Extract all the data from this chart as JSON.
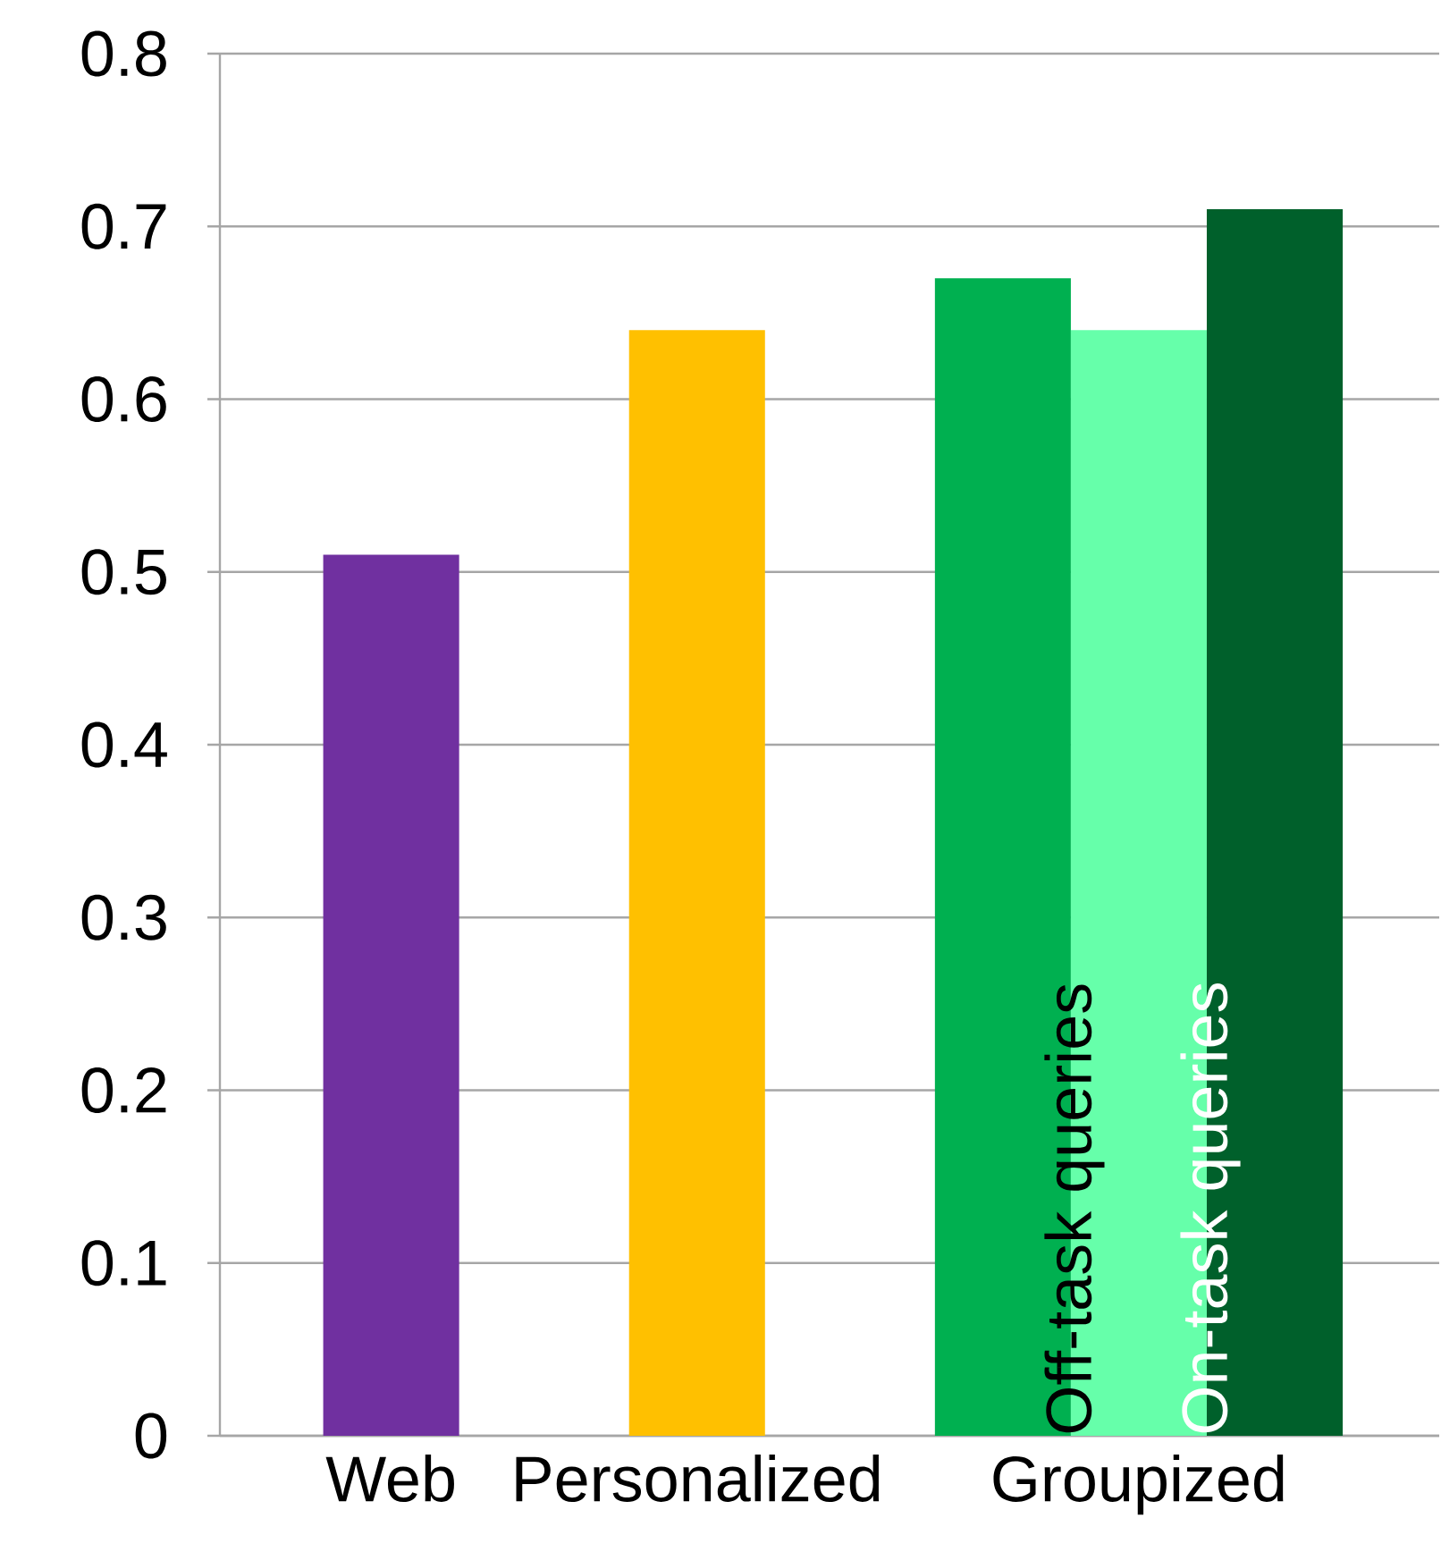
{
  "chart_data": {
    "type": "bar",
    "categories": [
      "Web",
      "Personalized",
      "Groupized"
    ],
    "series": [
      {
        "colors": [
          "#7030a0",
          "#ffc000",
          "#00b050"
        ],
        "values": [
          0.51,
          0.64,
          0.67
        ]
      },
      {
        "name": "Off-task queries",
        "color": "#66ffaa",
        "values": [
          null,
          null,
          0.64
        ]
      },
      {
        "name": "On-task queries",
        "color": "#00602b",
        "values": [
          null,
          null,
          0.71
        ]
      }
    ],
    "ylim": [
      0,
      0.8
    ],
    "yticks": [
      0,
      0.1,
      0.2,
      0.3,
      0.4,
      0.5,
      0.6,
      0.7,
      0.8
    ],
    "grid": "y"
  }
}
